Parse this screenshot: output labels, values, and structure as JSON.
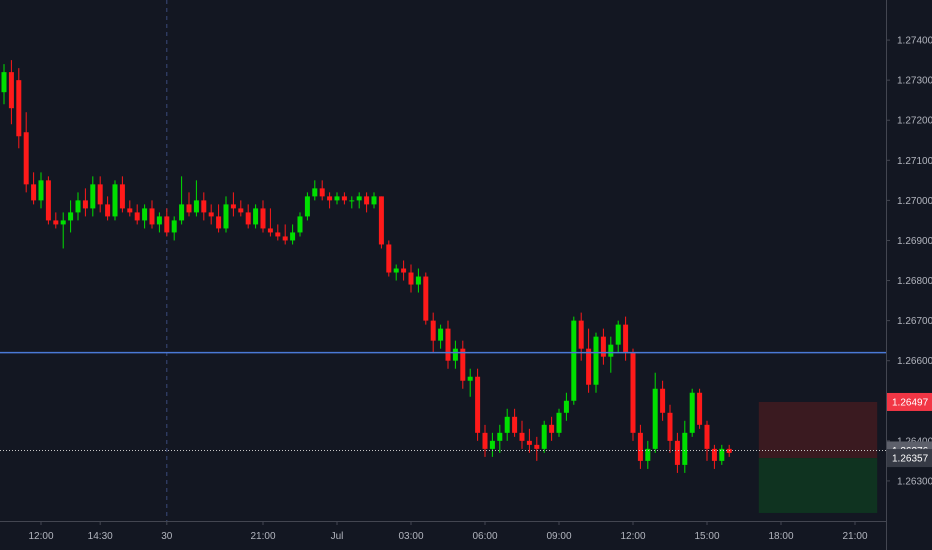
{
  "chart_data": {
    "type": "candlestick",
    "price_axis": {
      "ylim": [
        1.262,
        1.275
      ],
      "ticks": [
        "1.27400",
        "1.27300",
        "1.27200",
        "1.27100",
        "1.27000",
        "1.26900",
        "1.26800",
        "1.26700",
        "1.26600",
        "1.26400",
        "1.26300"
      ],
      "tick_values": [
        1.274,
        1.273,
        1.272,
        1.271,
        1.27,
        1.269,
        1.268,
        1.267,
        1.266,
        1.264,
        1.263
      ]
    },
    "time_axis": {
      "labels": [
        "12:00",
        "14:30",
        "30",
        "21:00",
        "Jul",
        "03:00",
        "06:00",
        "09:00",
        "12:00",
        "15:00",
        "18:00",
        "21:00"
      ],
      "label_slots": [
        5,
        13,
        22,
        35,
        45,
        55,
        65,
        75,
        85,
        95,
        105,
        115
      ]
    },
    "candles": [
      [
        1.2727,
        1.2734,
        1.2724,
        1.2732
      ],
      [
        1.2732,
        1.2735,
        1.2719,
        1.2723
      ],
      [
        1.273,
        1.2733,
        1.2713,
        1.2716
      ],
      [
        1.2717,
        1.2722,
        1.2702,
        1.2704
      ],
      [
        1.2704,
        1.2707,
        1.2699,
        1.27
      ],
      [
        1.27,
        1.2707,
        1.2698,
        1.2705
      ],
      [
        1.2705,
        1.2706,
        1.2694,
        1.2695
      ],
      [
        1.2695,
        1.2697,
        1.2693,
        1.2694
      ],
      [
        1.2694,
        1.2697,
        1.2688,
        1.2695
      ],
      [
        1.2695,
        1.27,
        1.2692,
        1.2697
      ],
      [
        1.2697,
        1.2702,
        1.2695,
        1.27
      ],
      [
        1.27,
        1.2703,
        1.2696,
        1.2698
      ],
      [
        1.2698,
        1.2706,
        1.2696,
        1.2704
      ],
      [
        1.2704,
        1.2706,
        1.2697,
        1.2699
      ],
      [
        1.2699,
        1.2701,
        1.2695,
        1.2696
      ],
      [
        1.2696,
        1.2705,
        1.2695,
        1.2704
      ],
      [
        1.2704,
        1.2706,
        1.2697,
        1.2698
      ],
      [
        1.2698,
        1.27,
        1.2696,
        1.2697
      ],
      [
        1.2697,
        1.2699,
        1.2694,
        1.2695
      ],
      [
        1.2695,
        1.2699,
        1.2693,
        1.2698
      ],
      [
        1.2698,
        1.27,
        1.2693,
        1.2694
      ],
      [
        1.2694,
        1.2697,
        1.2692,
        1.2696
      ],
      [
        1.2696,
        1.2698,
        1.2691,
        1.2692
      ],
      [
        1.2692,
        1.2696,
        1.269,
        1.2695
      ],
      [
        1.2695,
        1.2706,
        1.2694,
        1.2699
      ],
      [
        1.2699,
        1.2702,
        1.2696,
        1.2697
      ],
      [
        1.2697,
        1.2705,
        1.2696,
        1.27
      ],
      [
        1.27,
        1.2702,
        1.2695,
        1.2697
      ],
      [
        1.2697,
        1.2699,
        1.2694,
        1.2696
      ],
      [
        1.2696,
        1.2699,
        1.2692,
        1.2693
      ],
      [
        1.2693,
        1.2701,
        1.2692,
        1.2699
      ],
      [
        1.2699,
        1.2702,
        1.2696,
        1.2698
      ],
      [
        1.2698,
        1.27,
        1.2696,
        1.2697
      ],
      [
        1.2697,
        1.2699,
        1.2693,
        1.2694
      ],
      [
        1.2694,
        1.2699,
        1.2693,
        1.2698
      ],
      [
        1.2698,
        1.27,
        1.2692,
        1.2693
      ],
      [
        1.2693,
        1.2698,
        1.2691,
        1.2692
      ],
      [
        1.2692,
        1.2694,
        1.269,
        1.2691
      ],
      [
        1.2691,
        1.2694,
        1.2689,
        1.269
      ],
      [
        1.269,
        1.2694,
        1.2689,
        1.2692
      ],
      [
        1.2692,
        1.2697,
        1.2691,
        1.2696
      ],
      [
        1.2696,
        1.2702,
        1.2695,
        1.2701
      ],
      [
        1.2701,
        1.2705,
        1.27,
        1.2703
      ],
      [
        1.2703,
        1.2705,
        1.27,
        1.2701
      ],
      [
        1.2701,
        1.2702,
        1.2698,
        1.27
      ],
      [
        1.27,
        1.2702,
        1.2699,
        1.2701
      ],
      [
        1.2701,
        1.2702,
        1.2699,
        1.27
      ],
      [
        1.27,
        1.2701,
        1.2698,
        1.27
      ],
      [
        1.27,
        1.2702,
        1.2698,
        1.2701
      ],
      [
        1.2701,
        1.2702,
        1.2697,
        1.2699
      ],
      [
        1.2699,
        1.2702,
        1.2698,
        1.2701
      ],
      [
        1.2701,
        1.2701,
        1.2688,
        1.2689
      ],
      [
        1.2689,
        1.269,
        1.2681,
        1.2682
      ],
      [
        1.2682,
        1.2684,
        1.268,
        1.2683
      ],
      [
        1.2683,
        1.2685,
        1.268,
        1.2682
      ],
      [
        1.2682,
        1.2684,
        1.2677,
        1.2679
      ],
      [
        1.2679,
        1.2683,
        1.2677,
        1.2681
      ],
      [
        1.2681,
        1.2682,
        1.2669,
        1.267
      ],
      [
        1.267,
        1.2672,
        1.2662,
        1.2665
      ],
      [
        1.2665,
        1.2669,
        1.2663,
        1.2668
      ],
      [
        1.2668,
        1.267,
        1.2658,
        1.266
      ],
      [
        1.266,
        1.2665,
        1.2658,
        1.2663
      ],
      [
        1.2663,
        1.2665,
        1.2653,
        1.2655
      ],
      [
        1.2655,
        1.2658,
        1.2651,
        1.2656
      ],
      [
        1.2656,
        1.2658,
        1.264,
        1.2642
      ],
      [
        1.2642,
        1.2644,
        1.2636,
        1.2638
      ],
      [
        1.2638,
        1.2642,
        1.2636,
        1.264
      ],
      [
        1.264,
        1.2644,
        1.2637,
        1.2642
      ],
      [
        1.2642,
        1.2648,
        1.264,
        1.2646
      ],
      [
        1.2646,
        1.2648,
        1.2641,
        1.2642
      ],
      [
        1.2642,
        1.2645,
        1.2638,
        1.264
      ],
      [
        1.264,
        1.2643,
        1.2637,
        1.2639
      ],
      [
        1.2639,
        1.2641,
        1.2635,
        1.2638
      ],
      [
        1.2638,
        1.2645,
        1.2637,
        1.2644
      ],
      [
        1.2644,
        1.2646,
        1.264,
        1.2642
      ],
      [
        1.2642,
        1.2648,
        1.2641,
        1.2647
      ],
      [
        1.2647,
        1.2652,
        1.2645,
        1.265
      ],
      [
        1.265,
        1.2671,
        1.2649,
        1.267
      ],
      [
        1.267,
        1.2672,
        1.266,
        1.2663
      ],
      [
        1.2663,
        1.2668,
        1.2652,
        1.2654
      ],
      [
        1.2654,
        1.2667,
        1.2652,
        1.2666
      ],
      [
        1.2666,
        1.2668,
        1.2659,
        1.2661
      ],
      [
        1.2661,
        1.2666,
        1.2657,
        1.2664
      ],
      [
        1.2664,
        1.267,
        1.2662,
        1.2669
      ],
      [
        1.2669,
        1.2671,
        1.266,
        1.2662
      ],
      [
        1.2662,
        1.2663,
        1.264,
        1.2642
      ],
      [
        1.2642,
        1.2644,
        1.2633,
        1.2635
      ],
      [
        1.2635,
        1.264,
        1.2633,
        1.2638
      ],
      [
        1.2638,
        1.2657,
        1.2637,
        1.2653
      ],
      [
        1.2653,
        1.2655,
        1.2645,
        1.2647
      ],
      [
        1.2647,
        1.2649,
        1.2637,
        1.264
      ],
      [
        1.264,
        1.2642,
        1.2632,
        1.2634
      ],
      [
        1.2634,
        1.2645,
        1.2632,
        1.2642
      ],
      [
        1.2642,
        1.2653,
        1.2641,
        1.2652
      ],
      [
        1.2652,
        1.2653,
        1.2643,
        1.2644
      ],
      [
        1.2644,
        1.2645,
        1.2635,
        1.2638
      ],
      [
        1.2638,
        1.2639,
        1.2633,
        1.2635
      ],
      [
        1.2635,
        1.2639,
        1.2634,
        1.2638
      ],
      [
        1.2638,
        1.2639,
        1.2636,
        1.2637
      ]
    ],
    "lines": {
      "horizontal_level": 1.2662,
      "current_price": 1.26376,
      "day_separator_slot": 22
    },
    "position_box": {
      "slot_start": 102,
      "slot_end": 118,
      "stop_level": 1.26497,
      "entry_level": 1.26357,
      "target_level": 1.2622
    },
    "price_tags": {
      "stop_label": "1.26497",
      "current_label": "1.26376",
      "entry_label": "1.26357"
    },
    "colors": {
      "background": "#131722",
      "up": "#00e000",
      "down": "#ff1a1a",
      "level_line": "#4a79d6",
      "axis_border": "#434651",
      "axis_text": "#b2b5be",
      "grid_dash": "#3a4a7a",
      "stop_zone": "#3a1a20",
      "target_zone": "#0f3320",
      "stop_tag": "#f23645",
      "current_tag": "#5d606b",
      "entry_tag": "#363a45"
    }
  }
}
